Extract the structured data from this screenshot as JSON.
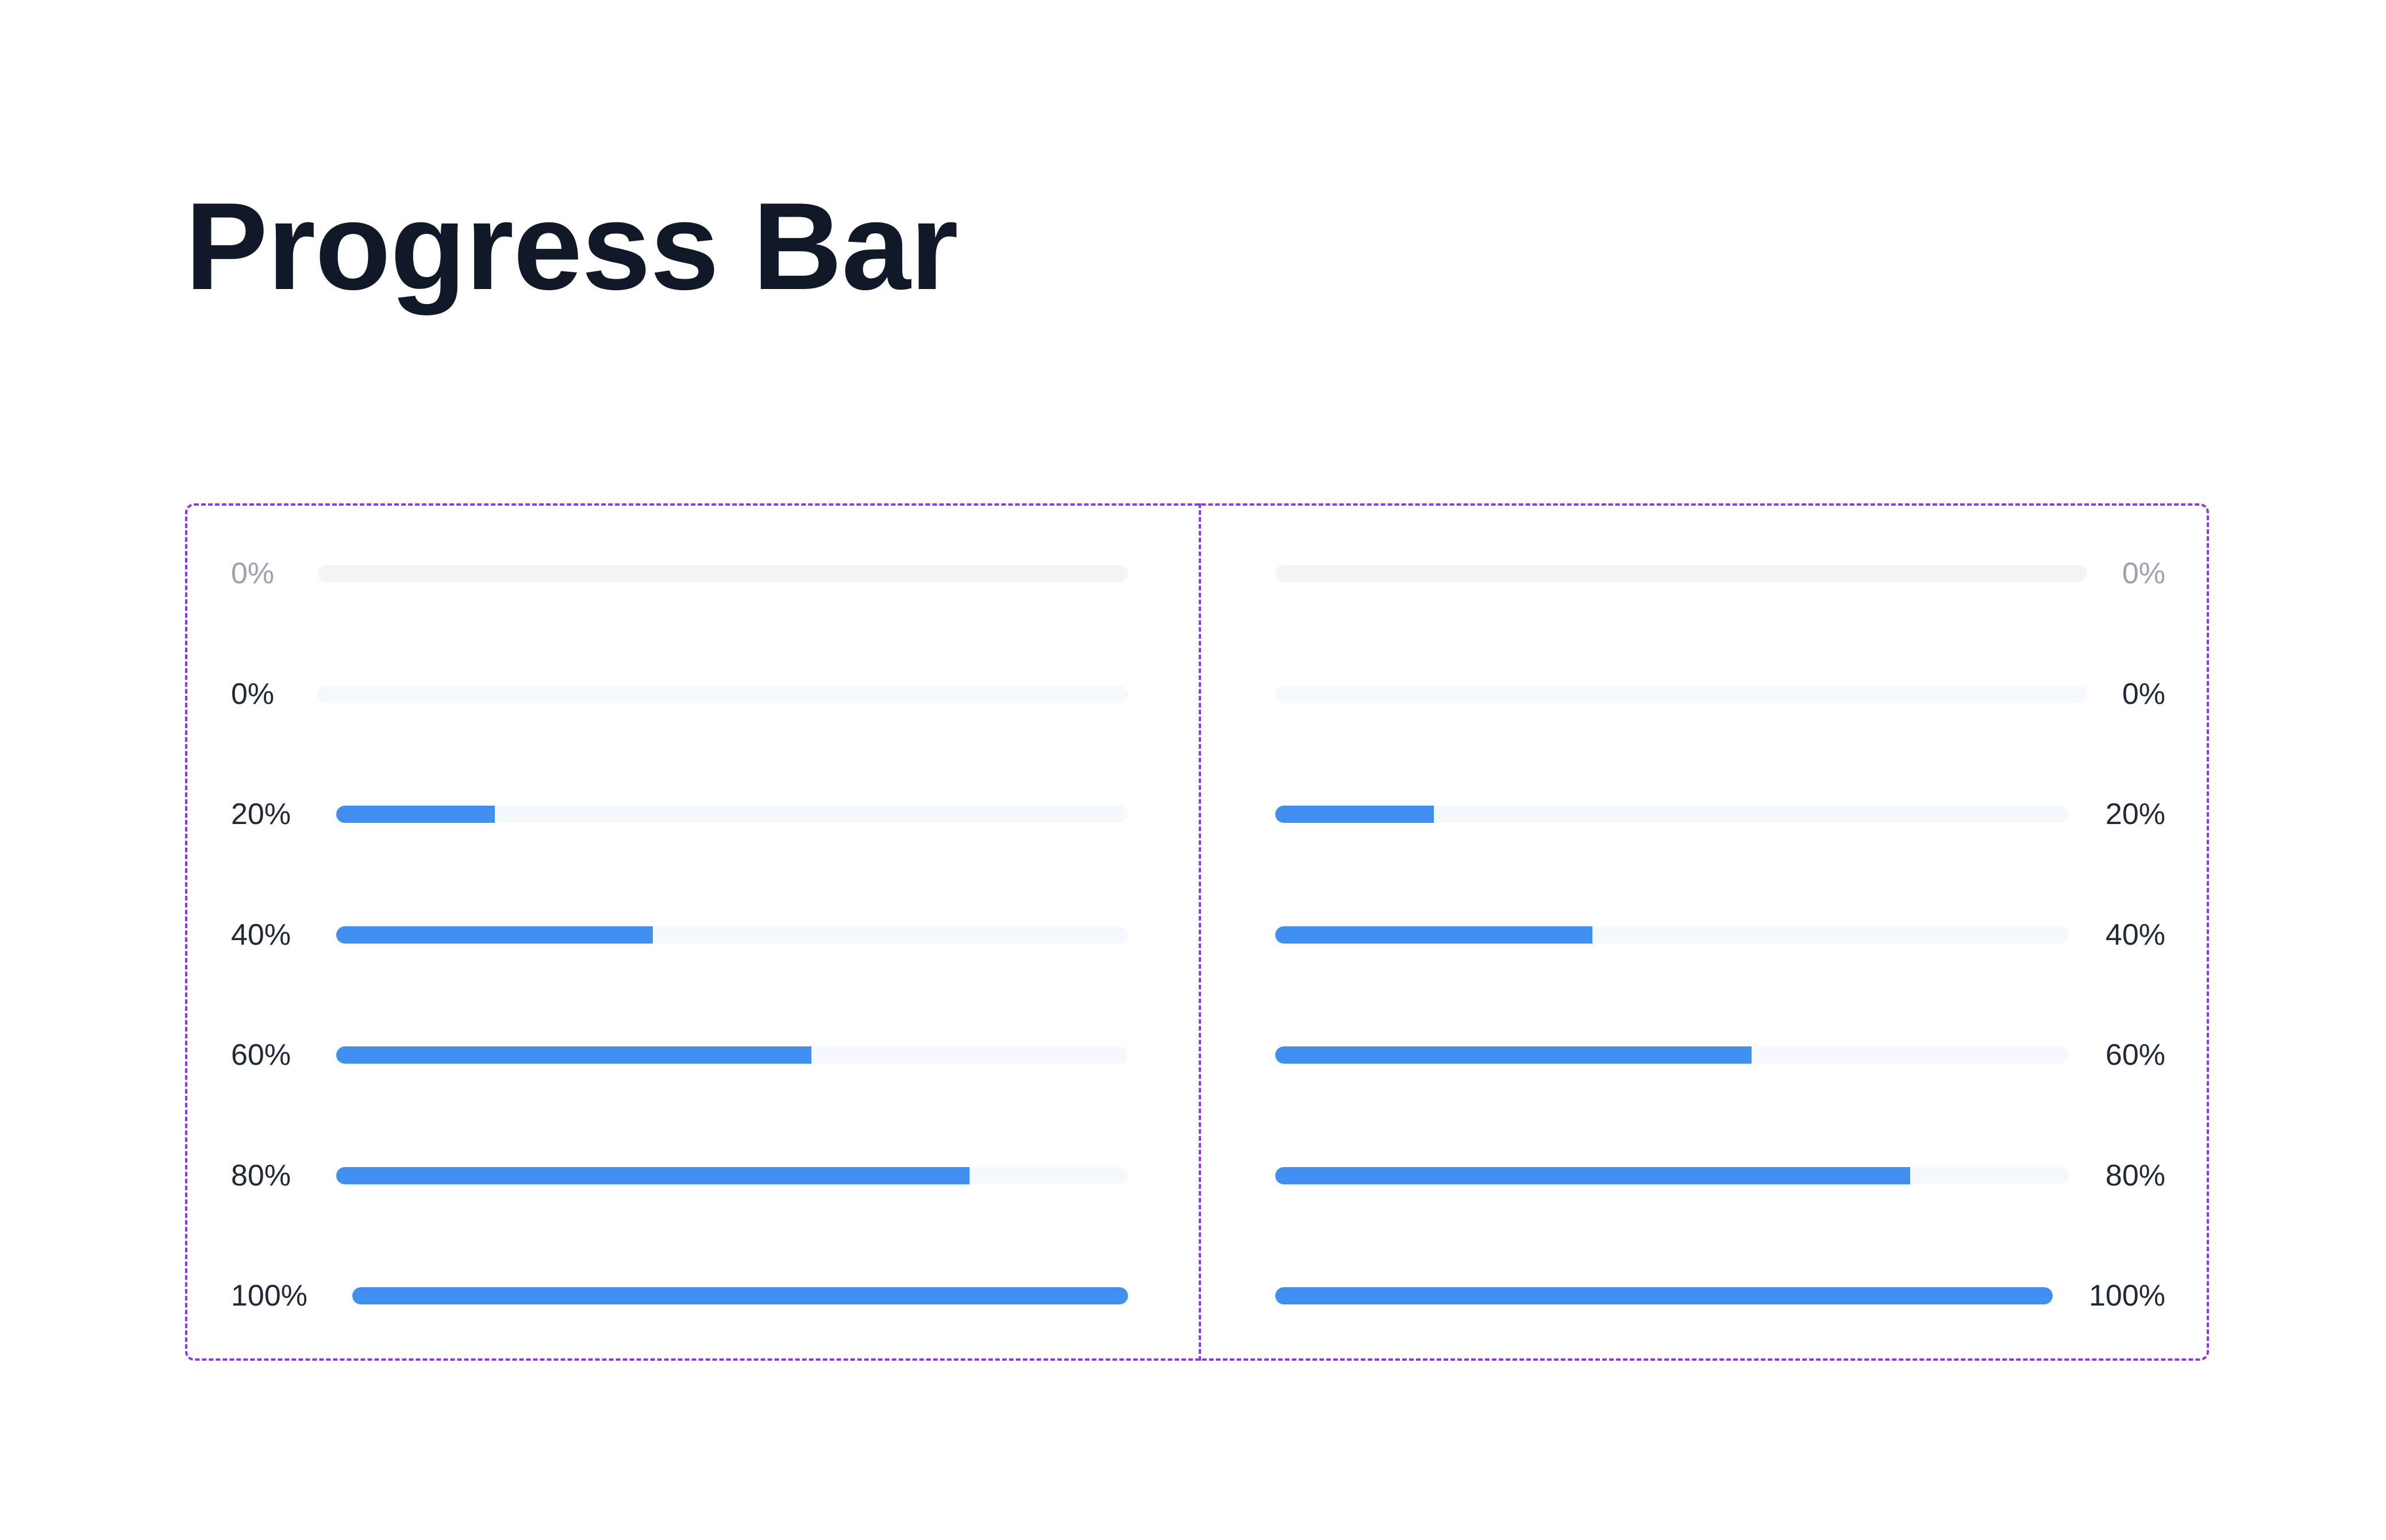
{
  "page": {
    "title": "Progress Bar"
  },
  "colors": {
    "fill": "#3f8ef0",
    "frame": "#9333ea"
  },
  "progress_rows": [
    {
      "label": "0%",
      "value": 0,
      "style": "disabled"
    },
    {
      "label": "0%",
      "value": 0,
      "style": "default"
    },
    {
      "label": "20%",
      "value": 20,
      "style": "default"
    },
    {
      "label": "40%",
      "value": 40,
      "style": "default"
    },
    {
      "label": "60%",
      "value": 60,
      "style": "default"
    },
    {
      "label": "80%",
      "value": 80,
      "style": "default"
    },
    {
      "label": "100%",
      "value": 100,
      "style": "default"
    }
  ]
}
